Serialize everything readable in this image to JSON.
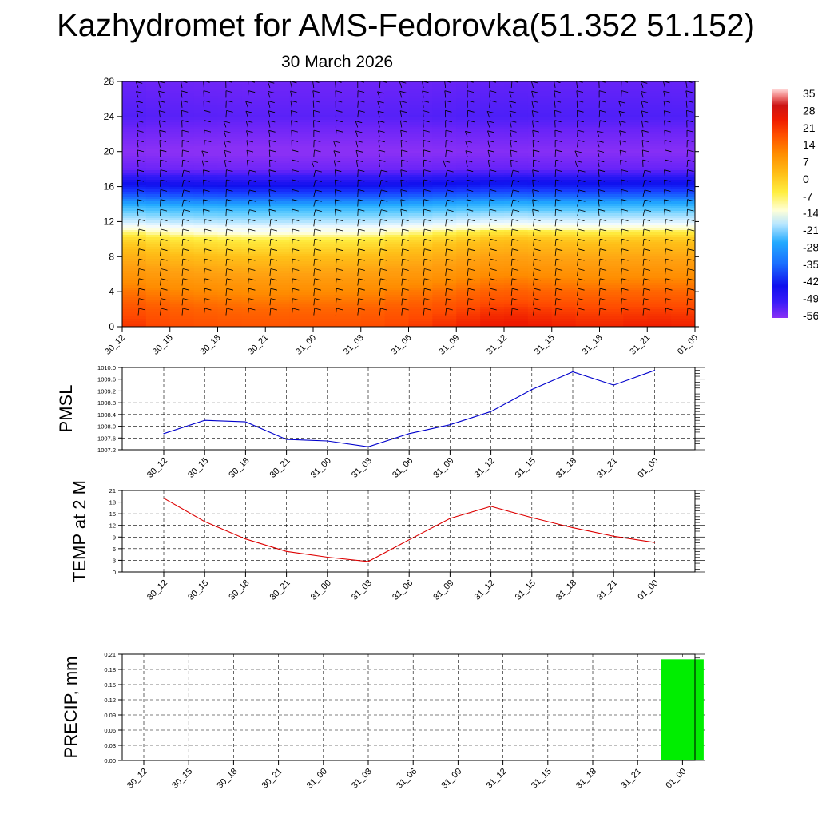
{
  "title": "Kazhydromet for AMS-Fedorovka(51.352 51.152)",
  "date": "30 March 2026",
  "colors": {
    "pmsl_line": "#0000cc",
    "temp_line": "#dd0000",
    "precip_bar": "#00ee00",
    "grid": "#000000"
  },
  "colorbar": {
    "labels": [
      "35",
      "28",
      "21",
      "14",
      "7",
      "0",
      "-7",
      "-14",
      "-21",
      "-28",
      "-35",
      "-42",
      "-49",
      "-56"
    ],
    "levels": [
      35,
      28,
      21,
      14,
      7,
      0,
      -7,
      -14,
      -21,
      -28,
      -35,
      -42,
      -49,
      -56
    ],
    "min": -60,
    "max": 38
  },
  "chart_data": [
    {
      "type": "heatmap",
      "name": "temperature-cross-section",
      "x_labels": [
        "30_12",
        "30_15",
        "30_18",
        "30_21",
        "31_00",
        "31_03",
        "31_06",
        "31_09",
        "31_12",
        "31_15",
        "31_18",
        "31_21",
        "01_00"
      ],
      "y_ticks": [
        "0",
        "4",
        "8",
        "12",
        "16",
        "20",
        "24",
        "28"
      ],
      "ylim": [
        0,
        28
      ],
      "levels": [
        0,
        2,
        4,
        6,
        8,
        10,
        11,
        12,
        13,
        14,
        15,
        16,
        17,
        18,
        19,
        20,
        22,
        24,
        26,
        28
      ],
      "profile": [
        20,
        17,
        12,
        6,
        0,
        -6,
        -12,
        -17,
        -21,
        -28,
        -36,
        -44,
        -50,
        -56,
        -58,
        -60,
        -57,
        -54,
        -55,
        -56
      ],
      "time_offset": [
        0.5,
        -2,
        -3,
        -3.5,
        -3,
        -3,
        -1,
        1,
        3,
        2,
        1,
        2,
        1.5
      ],
      "wind_barbs": "shown",
      "legend": "colorbar-right"
    },
    {
      "type": "line",
      "name": "pmsl",
      "ylabel": "PMSL",
      "x": [
        "30_12",
        "30_15",
        "30_18",
        "30_21",
        "31_00",
        "31_03",
        "31_06",
        "31_09",
        "31_12",
        "31_15",
        "31_18",
        "31_21",
        "01_00"
      ],
      "values": [
        1007.75,
        1008.2,
        1008.15,
        1007.55,
        1007.5,
        1007.3,
        1007.75,
        1008.05,
        1008.5,
        1009.25,
        1009.85,
        1009.4,
        1009.9
      ],
      "ylim": [
        1007.2,
        1010.0
      ],
      "y_ticks": [
        "1007.2",
        "1007.6",
        "1008.0",
        "1008.4",
        "1008.8",
        "1009.2",
        "1009.6",
        "1010.0"
      ],
      "grid": true
    },
    {
      "type": "line",
      "name": "temp-2m",
      "ylabel": "TEMP at 2 M",
      "x": [
        "30_12",
        "30_15",
        "30_18",
        "30_21",
        "31_00",
        "31_03",
        "31_06",
        "31_09",
        "31_12",
        "31_15",
        "31_18",
        "31_21",
        "01_00"
      ],
      "values": [
        19.0,
        13.0,
        8.5,
        5.3,
        3.8,
        2.7,
        8.3,
        13.8,
        16.9,
        14.0,
        11.4,
        9.2,
        7.6
      ],
      "ylim": [
        0,
        21
      ],
      "y_ticks": [
        "0",
        "3",
        "6",
        "9",
        "12",
        "15",
        "18",
        "21"
      ],
      "grid": true
    },
    {
      "type": "bar",
      "name": "precip",
      "ylabel": "PRECIP, mm",
      "categories": [
        "30_12",
        "30_15",
        "30_18",
        "30_21",
        "31_00",
        "31_03",
        "31_06",
        "31_09",
        "31_12",
        "31_15",
        "31_18",
        "31_21",
        "01_00"
      ],
      "values": [
        0,
        0,
        0,
        0,
        0,
        0,
        0,
        0,
        0,
        0,
        0,
        0,
        0.2
      ],
      "ylim": [
        0,
        0.21
      ],
      "y_ticks": [
        "0.00",
        "0.03",
        "0.06",
        "0.09",
        "0.12",
        "0.15",
        "0.18",
        "0.21"
      ],
      "grid": true
    }
  ]
}
